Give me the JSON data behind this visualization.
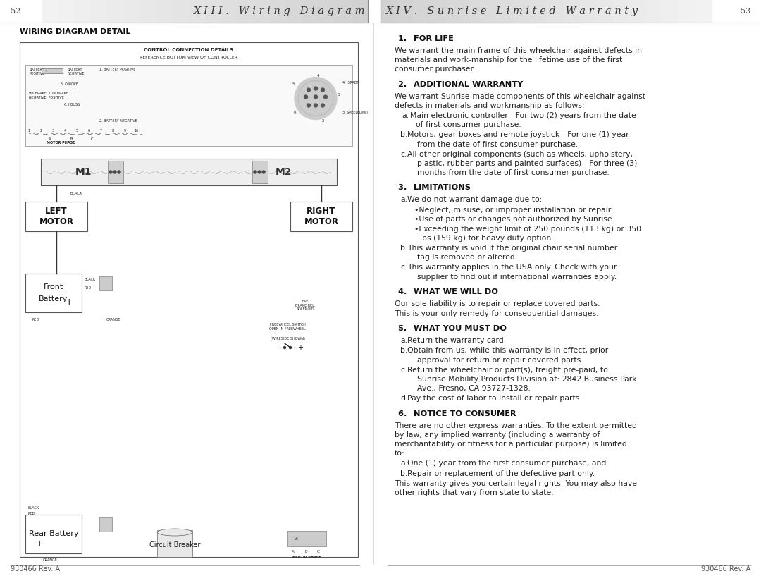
{
  "bg_color": "#ffffff",
  "left_page_num": "52",
  "right_page_num": "53",
  "left_header": "X I I I .   W i r i n g   D i a g r a m",
  "right_header": "X I V .   S u n r i s e   L i m i t e d   W a r r a n t y",
  "left_section_title": "WIRING DIAGRAM DETAIL",
  "footer_left": "930466 Rev. A",
  "footer_right": "930466 Rev. A",
  "right_sections": [
    {
      "heading": "1.  FOR LIFE",
      "content": [
        {
          "type": "body",
          "text": "We warrant the main frame of this wheelchair against defects in materials and work-manship for the lifetime use of the first consumer purchaser."
        }
      ]
    },
    {
      "heading": "2.  ADDITIONAL WARRANTY",
      "content": [
        {
          "type": "body",
          "text": "We warrant Sunrise-made components of this wheelchair against defects in materials and workmanship as follows:"
        },
        {
          "type": "list_a",
          "text": "Main electronic controller—For two (2) years from the date of first consumer purchase."
        },
        {
          "type": "list_b",
          "text": "Motors, gear boxes and remote joystick—For one (1) year from the date of first consumer purchase."
        },
        {
          "type": "list_b",
          "text": "All other original components (such as wheels, upholstery, plastic, rubber parts and painted surfaces)—For three (3) months from the date of first consumer purchase."
        }
      ]
    },
    {
      "heading": "3.  LIMITATIONS",
      "content": [
        {
          "type": "list_b",
          "text": "We do not warrant damage due to:"
        },
        {
          "type": "bullet",
          "text": "Neglect, misuse, or improper installation or repair."
        },
        {
          "type": "bullet",
          "text": "Use of parts or changes not authorized by Sunrise."
        },
        {
          "type": "bullet",
          "text": "Exceeding the weight limit of 250 pounds (113 kg) or 350 lbs (159 kg) for heavy duty option."
        },
        {
          "type": "list_b",
          "text": "This warranty is void if the original chair serial number tag is removed or altered."
        },
        {
          "type": "list_b",
          "text": "This warranty applies in the USA only. Check with your supplier to find out if international warranties apply."
        }
      ]
    },
    {
      "heading": "4.  WHAT WE WILL DO",
      "content": [
        {
          "type": "body",
          "text": "Our sole liability is to repair or replace covered parts."
        },
        {
          "type": "body",
          "text": "This is your only remedy for consequential damages."
        }
      ]
    },
    {
      "heading": "5.  WHAT YOU MUST DO",
      "content": [
        {
          "type": "list_b",
          "text": "Return the warranty card."
        },
        {
          "type": "list_b",
          "text": "Obtain from us, while this warranty is in effect, prior approval for return or repair covered parts."
        },
        {
          "type": "list_b",
          "text": "Return the wheelchair or part(s), freight pre-paid, to Sunrise Mobility Products Division at: 2842 Business Park Ave., Fresno, CA 93727-1328."
        },
        {
          "type": "list_b",
          "text": "Pay the cost of labor to install or repair parts."
        }
      ]
    },
    {
      "heading": "6.  NOTICE TO CONSUMER",
      "content": [
        {
          "type": "body",
          "text": "There are no other express warranties. To the extent permitted by law, any implied warranty (including a warranty of merchantability or fitness for a particular purpose) is limited to:"
        },
        {
          "type": "list_b",
          "text": "One (1) year from the first consumer purchase, and"
        },
        {
          "type": "list_b",
          "text": "Repair or replacement of the defective part only."
        },
        {
          "type": "body",
          "text": "This warranty gives you certain legal rights. You may also have other rights that vary from state to state."
        }
      ]
    }
  ]
}
